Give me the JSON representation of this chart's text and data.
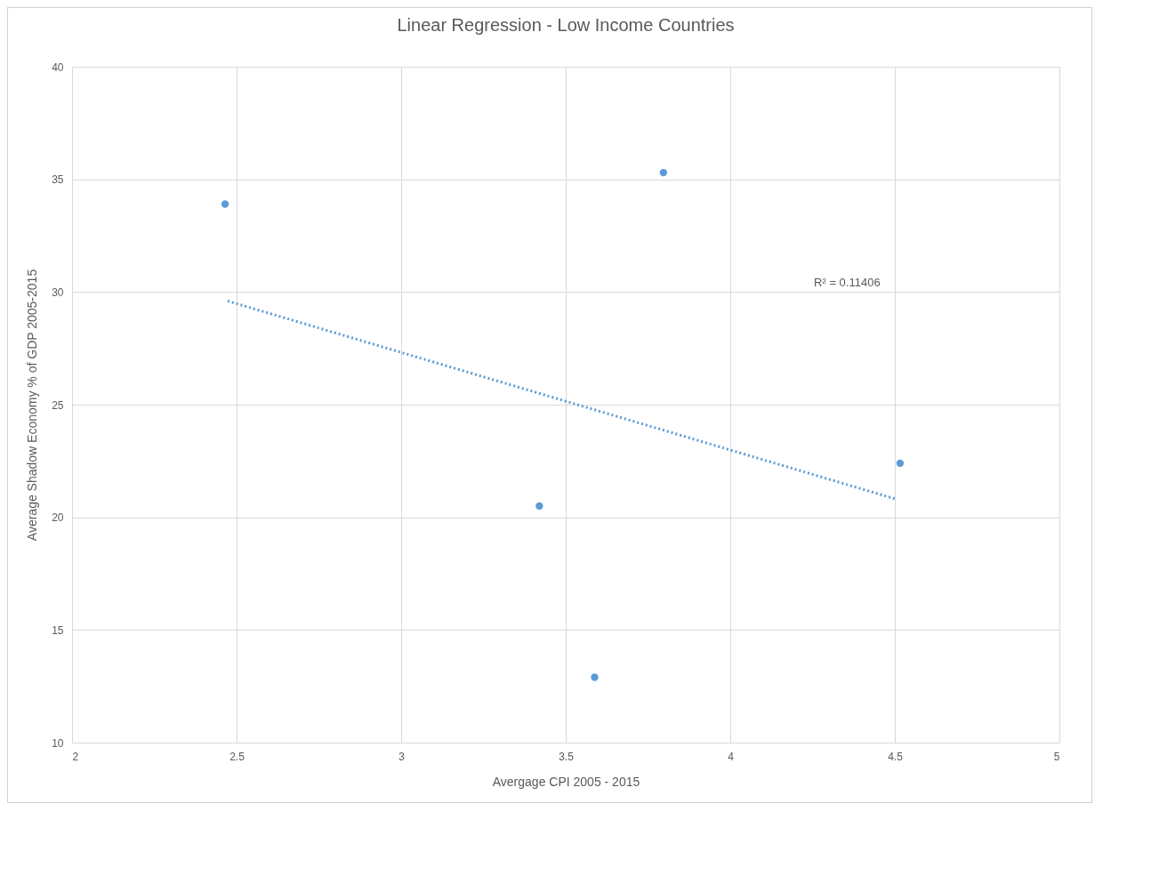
{
  "chart_data": {
    "type": "scatter",
    "title": "Linear Regression - Low Income Countries",
    "xlabel": "Avergage CPI 2005 - 2015",
    "ylabel": "Average Shadow Economy % of GDP 2005-2015",
    "xlim": [
      2,
      5
    ],
    "xticks": [
      2,
      2.5,
      3,
      3.5,
      4,
      4.5,
      5
    ],
    "ylim": [
      10,
      40
    ],
    "yticks": [
      10,
      15,
      20,
      25,
      30,
      35,
      40
    ],
    "grid": true,
    "marker": "circle",
    "series": [
      {
        "color": "#5b9bd5",
        "x": [
          2.465,
          3.42,
          3.588,
          3.797,
          4.516
        ],
        "values": [
          33.9,
          20.5,
          12.9,
          35.3,
          22.4
        ]
      },
      {
        "type": "line",
        "color": "#5b9bd5",
        "line_style": "dotted",
        "marker": "none",
        "x": [
          2.473,
          4.505
        ],
        "values": [
          29.6,
          20.8
        ]
      }
    ],
    "annotations": [
      "R² = 0.11406"
    ]
  }
}
